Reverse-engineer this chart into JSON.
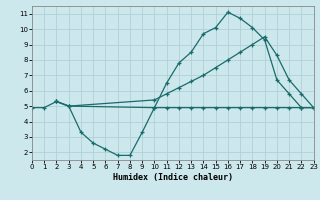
{
  "xlabel": "Humidex (Indice chaleur)",
  "bg_color": "#cce8ec",
  "grid_color": "#b0d0d8",
  "line_color": "#1a6b6b",
  "line1_x": [
    0,
    1,
    2,
    3,
    4,
    5,
    6,
    7,
    8,
    9,
    10,
    11,
    12,
    13,
    14,
    15,
    16,
    17,
    18,
    19,
    20,
    21,
    22,
    23
  ],
  "line1_y": [
    4.9,
    4.9,
    5.3,
    5.0,
    3.3,
    2.6,
    2.2,
    1.8,
    1.8,
    3.3,
    4.9,
    4.9,
    4.9,
    4.9,
    4.9,
    4.9,
    4.9,
    4.9,
    4.9,
    4.9,
    4.9,
    4.9,
    4.9,
    4.9
  ],
  "line2_x": [
    2,
    3,
    10,
    11,
    12,
    13,
    14,
    15,
    16,
    17,
    18,
    19,
    20,
    21,
    22,
    23
  ],
  "line2_y": [
    5.3,
    5.0,
    4.9,
    6.5,
    7.8,
    8.5,
    9.7,
    10.1,
    11.1,
    10.7,
    10.1,
    9.3,
    6.7,
    5.8,
    4.9,
    4.9
  ],
  "line3_x": [
    2,
    3,
    10,
    11,
    12,
    13,
    14,
    15,
    16,
    17,
    18,
    19,
    20,
    21,
    22,
    23
  ],
  "line3_y": [
    5.3,
    5.0,
    5.4,
    5.8,
    6.2,
    6.6,
    7.0,
    7.5,
    8.0,
    8.5,
    9.0,
    9.5,
    8.3,
    6.7,
    5.8,
    4.9
  ],
  "xlim": [
    0,
    23
  ],
  "ylim": [
    1.5,
    11.5
  ],
  "xticks": [
    0,
    1,
    2,
    3,
    4,
    5,
    6,
    7,
    8,
    9,
    10,
    11,
    12,
    13,
    14,
    15,
    16,
    17,
    18,
    19,
    20,
    21,
    22,
    23
  ],
  "yticks": [
    2,
    3,
    4,
    5,
    6,
    7,
    8,
    9,
    10,
    11
  ]
}
